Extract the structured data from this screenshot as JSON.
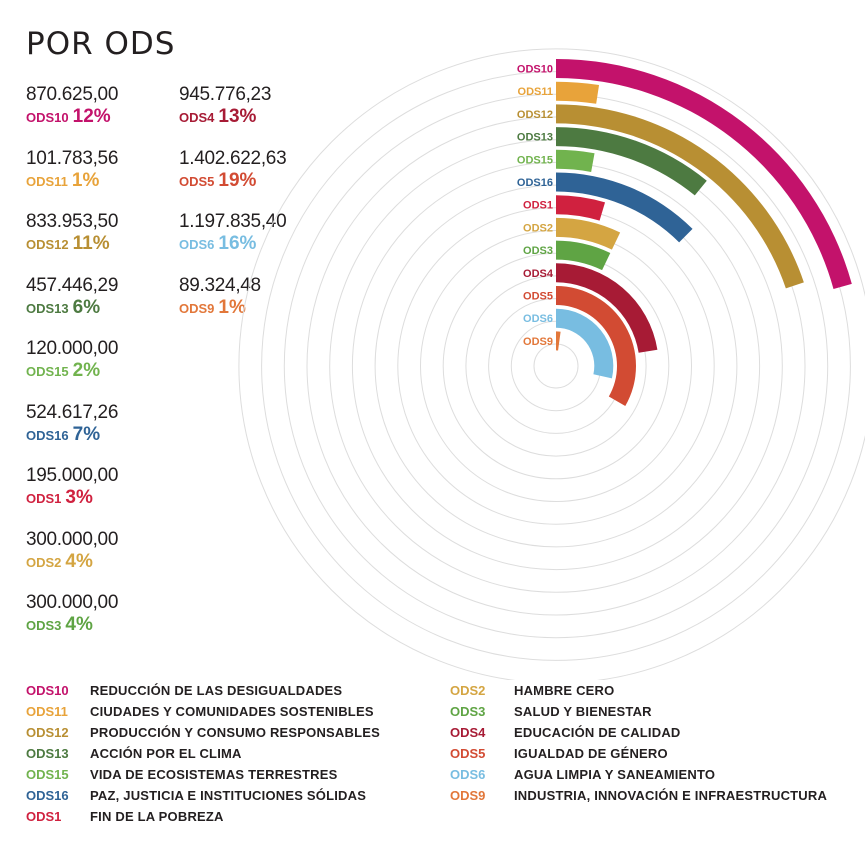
{
  "title": "POR ODS",
  "colors": {
    "ODS10": "#c3126b",
    "ODS11": "#e8a33a",
    "ODS12": "#b88f33",
    "ODS13": "#4d7a41",
    "ODS15": "#71b34e",
    "ODS16": "#2f6396",
    "ODS1": "#d0213f",
    "ODS2": "#d4a542",
    "ODS3": "#5fa444",
    "ODS4": "#a71b35",
    "ODS5": "#d24b33",
    "ODS6": "#78bde1",
    "ODS9": "#e2773a",
    "grid": "#dddddd"
  },
  "stats_left": [
    {
      "amount": "870.625,00",
      "code": "ODS10",
      "pct": "12%"
    },
    {
      "amount": "101.783,56",
      "code": "ODS11",
      "pct": "1%"
    },
    {
      "amount": "833.953,50",
      "code": "ODS12",
      "pct": "11%"
    },
    {
      "amount": "457.446,29",
      "code": "ODS13",
      "pct": "6%"
    },
    {
      "amount": "120.000,00",
      "code": "ODS15",
      "pct": "2%"
    },
    {
      "amount": "524.617,26",
      "code": "ODS16",
      "pct": "7%"
    },
    {
      "amount": "195.000,00",
      "code": "ODS1",
      "pct": "3%"
    },
    {
      "amount": "300.000,00",
      "code": "ODS2",
      "pct": "4%"
    },
    {
      "amount": "300.000,00",
      "code": "ODS3",
      "pct": "4%"
    }
  ],
  "stats_right": [
    {
      "amount": "945.776,23",
      "code": "ODS4",
      "pct": "13%"
    },
    {
      "amount": "1.402.622,63",
      "code": "ODS5",
      "pct": "19%"
    },
    {
      "amount": "1.197.835,40",
      "code": "ODS6",
      "pct": "16%"
    },
    {
      "amount": "89.324,48",
      "code": "ODS9",
      "pct": "1%"
    }
  ],
  "legend_left": [
    {
      "code": "ODS10",
      "name": "REDUCCIÓN DE LAS DESIGUALDADES"
    },
    {
      "code": "ODS11",
      "name": "CIUDADES Y COMUNIDADES SOSTENIBLES"
    },
    {
      "code": "ODS12",
      "name": "PRODUCCIÓN Y CONSUMO RESPONSABLES"
    },
    {
      "code": "ODS13",
      "name": "ACCIÓN POR EL CLIMA"
    },
    {
      "code": "ODS15",
      "name": "VIDA DE ECOSISTEMAS TERRESTRES"
    },
    {
      "code": "ODS16",
      "name": "PAZ, JUSTICIA E INSTITUCIONES SÓLIDAS"
    },
    {
      "code": "ODS1",
      "name": "FIN DE LA POBREZA"
    }
  ],
  "legend_right": [
    {
      "code": "ODS2",
      "name": "HAMBRE CERO"
    },
    {
      "code": "ODS3",
      "name": "SALUD Y BIENESTAR"
    },
    {
      "code": "ODS4",
      "name": "EDUCACIÓN DE CALIDAD"
    },
    {
      "code": "ODS5",
      "name": "IGUALDAD DE GÉNERO"
    },
    {
      "code": "ODS6",
      "name": "AGUA LIMPIA Y SANEAMIENTO"
    },
    {
      "code": "ODS9",
      "name": "INDUSTRIA, INNOVACIÓN E INFRAESTRUCTURA"
    }
  ],
  "chart_data": {
    "type": "radial-bar",
    "categories": [
      "ODS10",
      "ODS11",
      "ODS12",
      "ODS13",
      "ODS15",
      "ODS16",
      "ODS1",
      "ODS2",
      "ODS3",
      "ODS4",
      "ODS5",
      "ODS6",
      "ODS9"
    ],
    "values": [
      870625.0,
      101783.56,
      833953.5,
      457446.29,
      120000.0,
      524617.26,
      195000.0,
      300000.0,
      300000.0,
      945776.23,
      1402622.63,
      1197835.4,
      89324.48
    ],
    "percent_labels": [
      "12%",
      "1%",
      "11%",
      "6%",
      "2%",
      "7%",
      "3%",
      "4%",
      "4%",
      "13%",
      "19%",
      "16%",
      "1%"
    ],
    "grid": true
  }
}
